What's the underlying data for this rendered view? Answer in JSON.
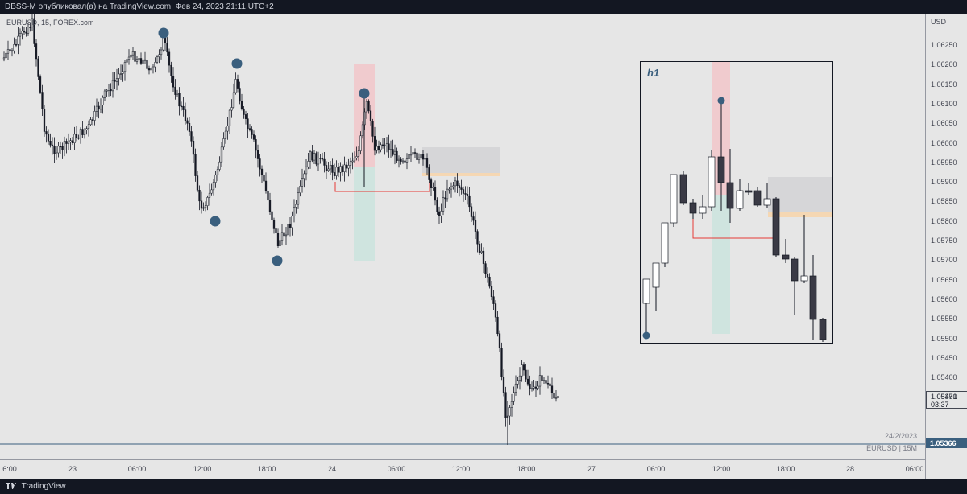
{
  "header": {
    "publish_text": "DBSS-M опубликовал(а) на TradingView.com, Фев 24, 2023 21:11 UTC+2"
  },
  "chart": {
    "symbol_label": "EURUSD, 15, FOREX.com",
    "price_unit": "USD",
    "price_ticks": [
      "1.06250",
      "1.06200",
      "1.06150",
      "1.06100",
      "1.06050",
      "1.06000",
      "1.05950",
      "1.05900",
      "1.05850",
      "1.05800",
      "1.05750",
      "1.05700",
      "1.05650",
      "1.05600",
      "1.05550",
      "1.05500",
      "1.05450",
      "1.05400",
      "1.05350"
    ],
    "last_price": "1.05471",
    "countdown": "03:37",
    "close_line_price": "1.05366",
    "time_ticks": [
      "6:00",
      "23",
      "06:00",
      "12:00",
      "18:00",
      "24",
      "06:00",
      "12:00",
      "18:00",
      "27",
      "06:00",
      "12:00",
      "18:00",
      "28",
      "06:00"
    ],
    "date_label": "24/2/2023",
    "source_label": "EURUSD | 15M",
    "colors": {
      "background": "#e6e6e6",
      "candle": "#131722",
      "marker": "#3a5f7e",
      "level_line": "#e53935",
      "pink_zone": "#f3c1c6",
      "green_zone": "#c7e3dc",
      "gray_zone": "#d6d6d8",
      "orange_edge": "#f5d7b3"
    }
  },
  "inset": {
    "title": "h1"
  },
  "footer": {
    "brand": "TradingView"
  }
}
